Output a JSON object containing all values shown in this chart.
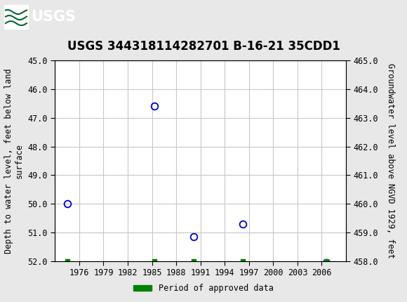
{
  "title": "USGS 344318114282701 B-16-21 35CDD1",
  "ylabel_left": "Depth to water level, feet below land\nsurface",
  "ylabel_right": "Groundwater level above NGVD 1929, feet",
  "ylim_left": [
    45.0,
    52.0
  ],
  "ylim_right": [
    458.0,
    465.0
  ],
  "xlim": [
    1973.0,
    2009.0
  ],
  "xticks": [
    1976,
    1979,
    1982,
    1985,
    1988,
    1991,
    1994,
    1997,
    2000,
    2003,
    2006
  ],
  "yticks_left": [
    45.0,
    46.0,
    47.0,
    48.0,
    49.0,
    50.0,
    51.0,
    52.0
  ],
  "yticks_right": [
    458.0,
    459.0,
    460.0,
    461.0,
    462.0,
    463.0,
    464.0,
    465.0
  ],
  "scatter_x": [
    1974.5,
    1985.3,
    1990.2,
    1996.2,
    2006.6
  ],
  "scatter_y": [
    50.0,
    46.6,
    51.15,
    50.7,
    52.05
  ],
  "scatter_color": "#0000cc",
  "green_bar_x": [
    1974.5,
    1985.3,
    1990.2,
    1996.2,
    2006.6
  ],
  "green_bar_y": [
    52.0,
    52.0,
    52.0,
    52.0,
    52.0
  ],
  "green_color": "#008000",
  "fig_facecolor": "#e8e8e8",
  "plot_facecolor": "#ffffff",
  "header_color": "#006633",
  "title_fontsize": 12,
  "tick_fontsize": 8.5,
  "label_fontsize": 8.5,
  "legend_fontsize": 8.5,
  "grid_color": "#c8c8c8"
}
